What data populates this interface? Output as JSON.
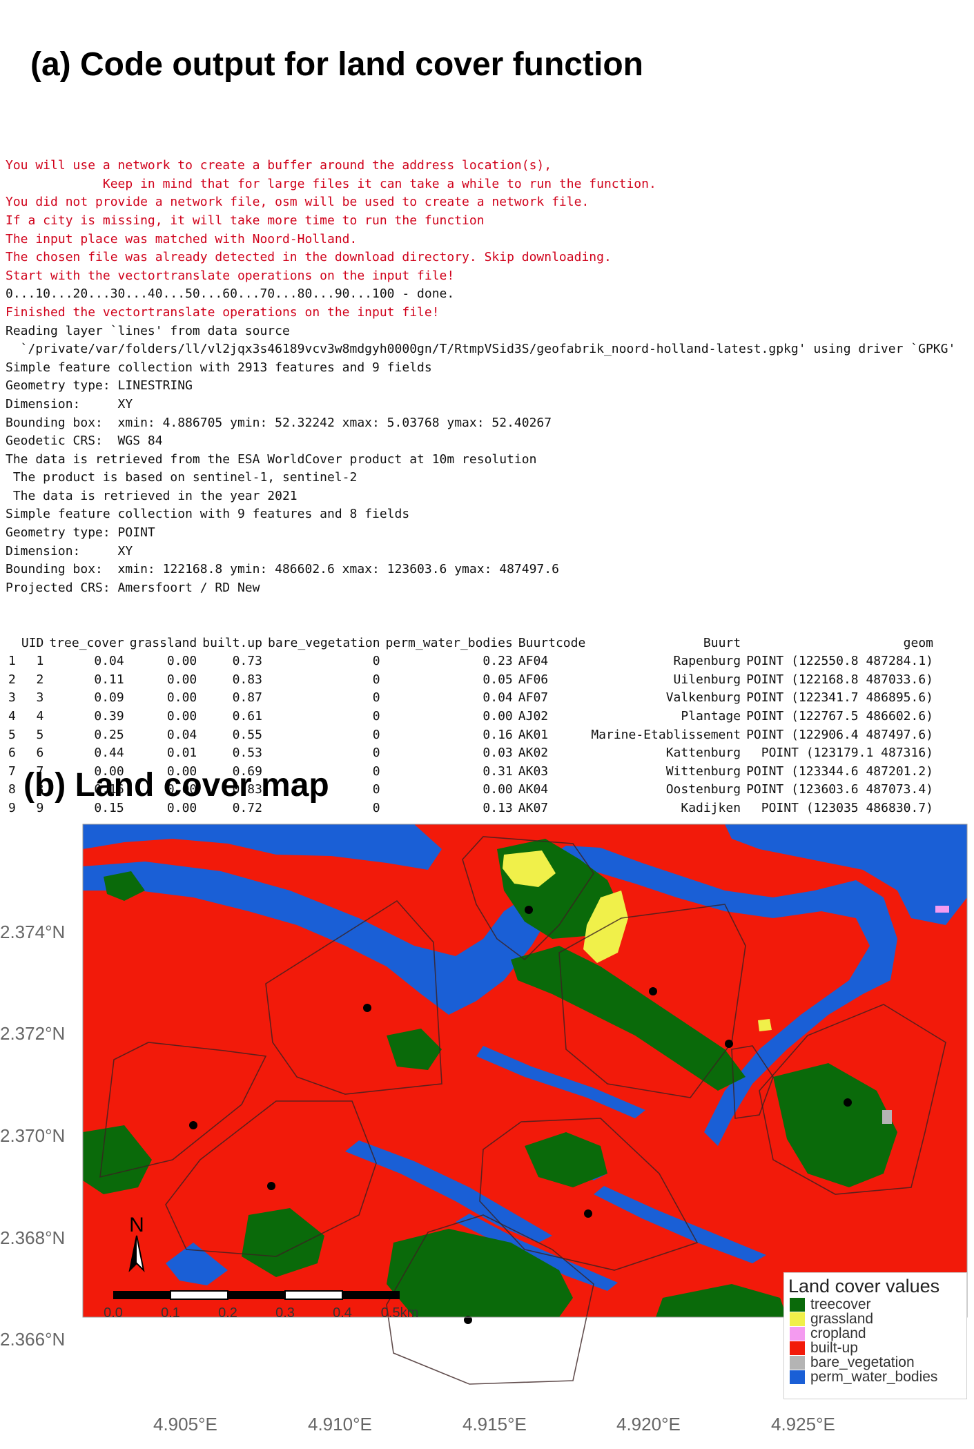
{
  "headings": {
    "a": "(a) Code output for land cover function",
    "b": "(b) Land cover  map"
  },
  "console": {
    "lines": [
      {
        "type": "msg",
        "text": "You will use a network to create a buffer around the address location(s),"
      },
      {
        "type": "msg",
        "text": "             Keep in mind that for large files it can take a while to run the function."
      },
      {
        "type": "msg",
        "text": "You did not provide a network file, osm will be used to create a network file."
      },
      {
        "type": "msg",
        "text": "If a city is missing, it will take more time to run the function"
      },
      {
        "type": "msg",
        "text": "The input place was matched with Noord-Holland."
      },
      {
        "type": "msg",
        "text": "The chosen file was already detected in the download directory. Skip downloading."
      },
      {
        "type": "msg",
        "text": "Start with the vectortranslate operations on the input file!"
      },
      {
        "type": "out",
        "text": "0...10...20...30...40...50...60...70...80...90...100 - done."
      },
      {
        "type": "msg",
        "text": "Finished the vectortranslate operations on the input file!"
      },
      {
        "type": "out",
        "text": "Reading layer `lines' from data source"
      },
      {
        "type": "out",
        "text": "  `/private/var/folders/ll/vl2jqx3s46189vcv3w8mdgyh0000gn/T/RtmpVSid3S/geofabrik_noord-holland-latest.gpkg' using driver `GPKG'"
      },
      {
        "type": "out",
        "text": "Simple feature collection with 2913 features and 9 fields"
      },
      {
        "type": "out",
        "text": "Geometry type: LINESTRING"
      },
      {
        "type": "out",
        "text": "Dimension:     XY"
      },
      {
        "type": "out",
        "text": "Bounding box:  xmin: 4.886705 ymin: 52.32242 xmax: 5.03768 ymax: 52.40267"
      },
      {
        "type": "out",
        "text": "Geodetic CRS:  WGS 84"
      },
      {
        "type": "out",
        "text": "The data is retrieved from the ESA WorldCover product at 10m resolution"
      },
      {
        "type": "out",
        "text": " The product is based on sentinel-1, sentinel-2"
      },
      {
        "type": "out",
        "text": " The data is retrieved in the year 2021"
      },
      {
        "type": "out",
        "text": "Simple feature collection with 9 features and 8 fields"
      },
      {
        "type": "out",
        "text": "Geometry type: POINT"
      },
      {
        "type": "out",
        "text": "Dimension:     XY"
      },
      {
        "type": "out",
        "text": "Bounding box:  xmin: 122168.8 ymin: 486602.6 xmax: 123603.6 ymax: 487497.6"
      },
      {
        "type": "out",
        "text": "Projected CRS: Amersfoort / RD New"
      }
    ],
    "table": {
      "columns": [
        "",
        "UID",
        "tree_cover",
        "grassland",
        "built.up",
        "bare_vegetation",
        "perm_water_bodies",
        "Buurtcode",
        "Buurt",
        "geom"
      ],
      "rows": [
        [
          "1",
          "1",
          "0.04",
          "0.00",
          "0.73",
          "0",
          "0.23",
          "AF04",
          "Rapenburg",
          "POINT (122550.8 487284.1)"
        ],
        [
          "2",
          "2",
          "0.11",
          "0.00",
          "0.83",
          "0",
          "0.05",
          "AF06",
          "Uilenburg",
          "POINT (122168.8 487033.6)"
        ],
        [
          "3",
          "3",
          "0.09",
          "0.00",
          "0.87",
          "0",
          "0.04",
          "AF07",
          "Valkenburg",
          "POINT (122341.7 486895.6)"
        ],
        [
          "4",
          "4",
          "0.39",
          "0.00",
          "0.61",
          "0",
          "0.00",
          "AJ02",
          "Plantage",
          "POINT (122767.5 486602.6)"
        ],
        [
          "5",
          "5",
          "0.25",
          "0.04",
          "0.55",
          "0",
          "0.16",
          "AK01",
          "Marine-Etablissement",
          "POINT (122906.4 487497.6)"
        ],
        [
          "6",
          "6",
          "0.44",
          "0.01",
          "0.53",
          "0",
          "0.03",
          "AK02",
          "Kattenburg",
          " POINT (123179.1 487316)"
        ],
        [
          "7",
          "7",
          "0.00",
          "0.00",
          "0.69",
          "0",
          "0.31",
          "AK03",
          "Wittenburg",
          "POINT (123344.6 487201.2)"
        ],
        [
          "8",
          "8",
          "0.16",
          "0.00",
          "0.83",
          "0",
          "0.00",
          "AK04",
          "Oostenburg",
          "POINT (123603.6 487073.4)"
        ],
        [
          "9",
          "9",
          "0.15",
          "0.00",
          "0.72",
          "0",
          "0.13",
          "AK07",
          "Kadijken",
          "  POINT (123035 486830.7)"
        ]
      ]
    }
  },
  "map": {
    "lat_labels": [
      "2.374°N",
      "2.372°N",
      "2.370°N",
      "2.368°N",
      "2.366°N"
    ],
    "lon_labels": [
      "4.905°E",
      "4.910°E",
      "4.915°E",
      "4.920°E",
      "4.925°E"
    ],
    "north_label": "N",
    "scale_labels": [
      "0.0",
      "0.1",
      "0.2",
      "0.3",
      "0.4",
      "0.5km"
    ],
    "colors": {
      "treecover": "#0a6a0a",
      "grassland": "#f0f04a",
      "cropland": "#f49bf0",
      "built_up": "#f21a0a",
      "bare_vegetation": "#b4b4b4",
      "perm_water_bodies": "#1a5fd6"
    },
    "legend": {
      "title": "Land cover values",
      "items": [
        {
          "label": "treecover",
          "color": "#0a6a0a"
        },
        {
          "label": "grassland",
          "color": "#f0f04a"
        },
        {
          "label": "cropland",
          "color": "#f49bf0"
        },
        {
          "label": "built-up",
          "color": "#f21a0a"
        },
        {
          "label": "bare_vegetation",
          "color": "#b4b4b4"
        },
        {
          "label": "perm_water_bodies",
          "color": "#1a5fd6"
        }
      ]
    }
  }
}
